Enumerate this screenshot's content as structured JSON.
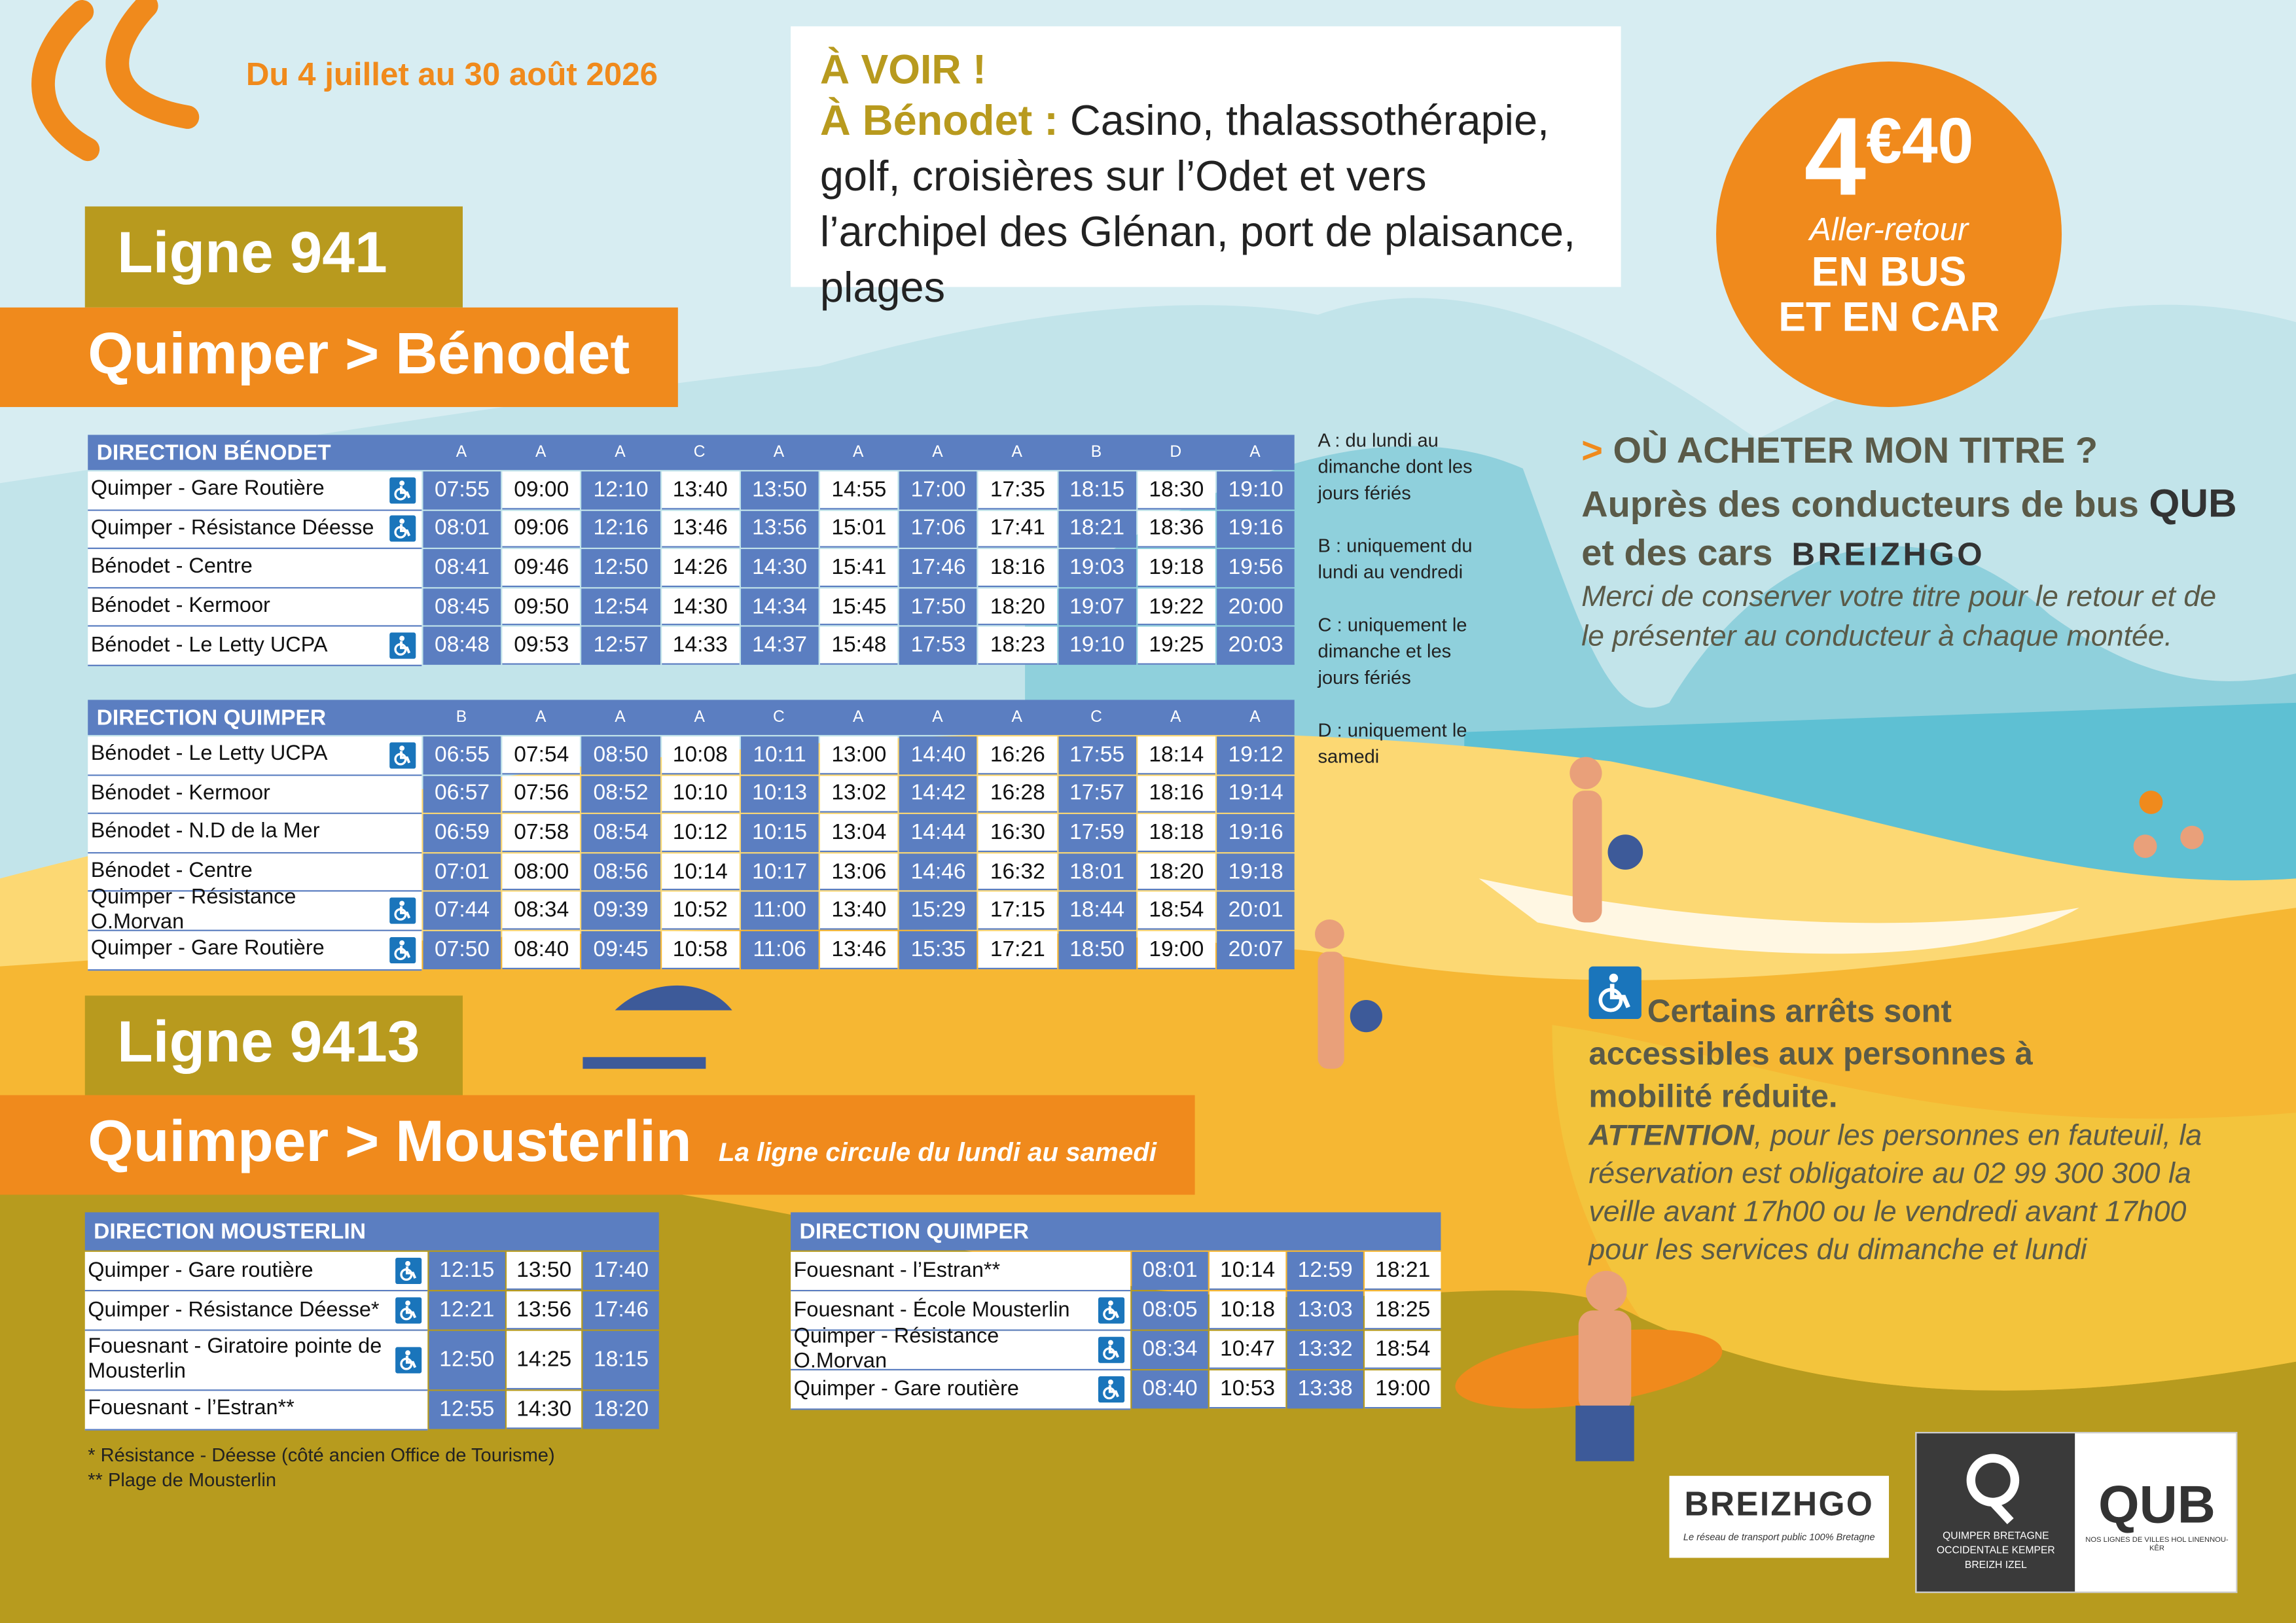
{
  "header": {
    "dates": "Du 4 juillet au 30 août 2026"
  },
  "a_voir": {
    "title": "À VOIR !",
    "place": "À Bénodet :",
    "text": "Casino, thalassothérapie, golf, croisières sur l’Odet et vers l’archipel des Glénan, port de plaisance, plages"
  },
  "price": {
    "euros": "4",
    "cents": "€40",
    "label": "Aller-retour",
    "line1": "EN BUS",
    "line2": "ET EN CAR"
  },
  "line941": {
    "name": "Ligne 941",
    "route": "Quimper > Bénodet",
    "directions": [
      {
        "title": "DIRECTION BÉNODET",
        "codes": [
          "A",
          "A",
          "A",
          "C",
          "A",
          "A",
          "A",
          "A",
          "B",
          "D",
          "A"
        ],
        "rows": [
          {
            "stop": "Quimper - Gare Routière",
            "accessible": true,
            "times": [
              "07:55",
              "09:00",
              "12:10",
              "13:40",
              "13:50",
              "14:55",
              "17:00",
              "17:35",
              "18:15",
              "18:30",
              "19:10"
            ]
          },
          {
            "stop": "Quimper - Résistance Déesse",
            "accessible": true,
            "times": [
              "08:01",
              "09:06",
              "12:16",
              "13:46",
              "13:56",
              "15:01",
              "17:06",
              "17:41",
              "18:21",
              "18:36",
              "19:16"
            ]
          },
          {
            "stop": "Bénodet - Centre",
            "accessible": false,
            "times": [
              "08:41",
              "09:46",
              "12:50",
              "14:26",
              "14:30",
              "15:41",
              "17:46",
              "18:16",
              "19:03",
              "19:18",
              "19:56"
            ]
          },
          {
            "stop": "Bénodet - Kermoor",
            "accessible": false,
            "times": [
              "08:45",
              "09:50",
              "12:54",
              "14:30",
              "14:34",
              "15:45",
              "17:50",
              "18:20",
              "19:07",
              "19:22",
              "20:00"
            ]
          },
          {
            "stop": "Bénodet - Le Letty UCPA",
            "accessible": true,
            "times": [
              "08:48",
              "09:53",
              "12:57",
              "14:33",
              "14:37",
              "15:48",
              "17:53",
              "18:23",
              "19:10",
              "19:25",
              "20:03"
            ]
          }
        ]
      },
      {
        "title": "DIRECTION QUIMPER",
        "codes": [
          "B",
          "A",
          "A",
          "A",
          "C",
          "A",
          "A",
          "A",
          "C",
          "A",
          "A"
        ],
        "rows": [
          {
            "stop": "Bénodet - Le Letty UCPA",
            "accessible": true,
            "times": [
              "06:55",
              "07:54",
              "08:50",
              "10:08",
              "10:11",
              "13:00",
              "14:40",
              "16:26",
              "17:55",
              "18:14",
              "19:12"
            ]
          },
          {
            "stop": "Bénodet - Kermoor",
            "accessible": false,
            "times": [
              "06:57",
              "07:56",
              "08:52",
              "10:10",
              "10:13",
              "13:02",
              "14:42",
              "16:28",
              "17:57",
              "18:16",
              "19:14"
            ]
          },
          {
            "stop": "Bénodet - N.D de la Mer",
            "accessible": false,
            "times": [
              "06:59",
              "07:58",
              "08:54",
              "10:12",
              "10:15",
              "13:04",
              "14:44",
              "16:30",
              "17:59",
              "18:18",
              "19:16"
            ]
          },
          {
            "stop": "Bénodet - Centre",
            "accessible": false,
            "times": [
              "07:01",
              "08:00",
              "08:56",
              "10:14",
              "10:17",
              "13:06",
              "14:46",
              "16:32",
              "18:01",
              "18:20",
              "19:18"
            ]
          },
          {
            "stop": "Quimper - Résistance O.Morvan",
            "accessible": true,
            "times": [
              "07:44",
              "08:34",
              "09:39",
              "10:52",
              "11:00",
              "13:40",
              "15:29",
              "17:15",
              "18:44",
              "18:54",
              "20:01"
            ]
          },
          {
            "stop": "Quimper - Gare Routière",
            "accessible": true,
            "times": [
              "07:50",
              "08:40",
              "09:45",
              "10:58",
              "11:06",
              "13:46",
              "15:35",
              "17:21",
              "18:50",
              "19:00",
              "20:07"
            ]
          }
        ]
      }
    ]
  },
  "notes": [
    "A : du lundi au dimanche dont les jours fériés",
    "B : uniquement du lundi au vendredi",
    "C : uniquement le dimanche et les jours fériés",
    "D : uniquement le samedi"
  ],
  "buy": {
    "marker": ">",
    "title": "OÙ ACHETER MON TITRE ?",
    "line1": "Auprès des conducteurs de bus",
    "qub": "QUB",
    "line2": "et des cars",
    "breizhgo": "BREIZHGO",
    "note": "Merci de conserver votre titre pour le retour et de le présenter au conducteur à chaque montée."
  },
  "accessibility": {
    "title": "Certains arrêts sont accessibles aux personnes à mobilité réduite.",
    "attention": "ATTENTION",
    "text": ", pour les personnes en fauteuil, la réservation est obligatoire au 02 99 300 300 la veille avant 17h00 ou le vendredi avant 17h00 pour les services du dimanche et lundi"
  },
  "line9413": {
    "name": "Ligne 9413",
    "route": "Quimper > Mousterlin",
    "subtitle": "La ligne circule du lundi au samedi",
    "directions": [
      {
        "title": "DIRECTION MOUSTERLIN",
        "rows": [
          {
            "stop": "Quimper - Gare routière",
            "accessible": true,
            "times": [
              "12:15",
              "13:50",
              "17:40"
            ]
          },
          {
            "stop": "Quimper - Résistance Déesse*",
            "accessible": true,
            "times": [
              "12:21",
              "13:56",
              "17:46"
            ]
          },
          {
            "stop": "Fouesnant - Giratoire pointe de Mousterlin",
            "accessible": true,
            "times": [
              "12:50",
              "14:25",
              "18:15"
            ]
          },
          {
            "stop": "Fouesnant - l’Estran**",
            "accessible": false,
            "times": [
              "12:55",
              "14:30",
              "18:20"
            ]
          }
        ]
      },
      {
        "title": "DIRECTION QUIMPER",
        "rows": [
          {
            "stop": "Fouesnant - l’Estran**",
            "accessible": false,
            "times": [
              "08:01",
              "10:14",
              "12:59",
              "18:21"
            ]
          },
          {
            "stop": "Fouesnant - École Mousterlin",
            "accessible": true,
            "times": [
              "08:05",
              "10:18",
              "13:03",
              "18:25"
            ]
          },
          {
            "stop": "Quimper - Résistance O.Morvan",
            "accessible": true,
            "times": [
              "08:34",
              "10:47",
              "13:32",
              "18:54"
            ]
          },
          {
            "stop": "Quimper - Gare routière",
            "accessible": true,
            "times": [
              "08:40",
              "10:53",
              "13:38",
              "19:00"
            ]
          }
        ]
      }
    ]
  },
  "footnotes": [
    "* Résistance - Déesse (côté ancien Office de Tourisme)",
    "** Plage de Mousterlin"
  ],
  "logos": {
    "breizhgo": "BREIZHGO",
    "breizhgo_tagline": "Le réseau de transport public 100% Bretagne",
    "qub_org": "QUIMPER BRETAGNE OCCIDENTALE KEMPER BREIZH IZEL",
    "qub": "QUB",
    "qub_tagline": "NOS LIGNES DE VILLES HOL LINENNOU-KÊR"
  }
}
